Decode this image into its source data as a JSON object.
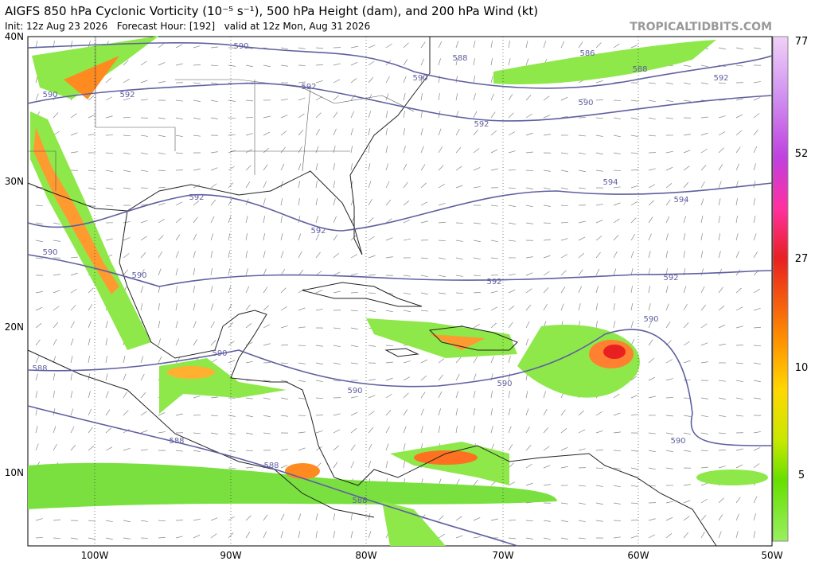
{
  "header": {
    "title": "AIGFS 850 hPa Cyclonic Vorticity (10⁻⁵ s⁻¹), 500 hPa Height (dam), and 200 hPa Wind (kt)",
    "subtitle": "Init: 12z Aug 23 2026   Forecast Hour: [192]   valid at 12z Mon, Aug 31 2026",
    "site": "TROPICALTIDBITS.COM"
  },
  "axes": {
    "lat_labels": [
      "40N",
      "30N",
      "20N",
      "10N"
    ],
    "lon_labels": [
      "100W",
      "90W",
      "80W",
      "70W",
      "60W",
      "50W"
    ]
  },
  "colorbar": {
    "labels": [
      "77",
      "52",
      "27",
      "10",
      "5"
    ]
  },
  "contour_labels": [
    "590",
    "588",
    "586",
    "588",
    "592",
    "590",
    "590",
    "592",
    "592",
    "590",
    "592",
    "594",
    "594",
    "592",
    "592",
    "590",
    "590",
    "592",
    "592",
    "590",
    "590",
    "590",
    "590",
    "588",
    "588",
    "590",
    "588",
    "588"
  ]
}
